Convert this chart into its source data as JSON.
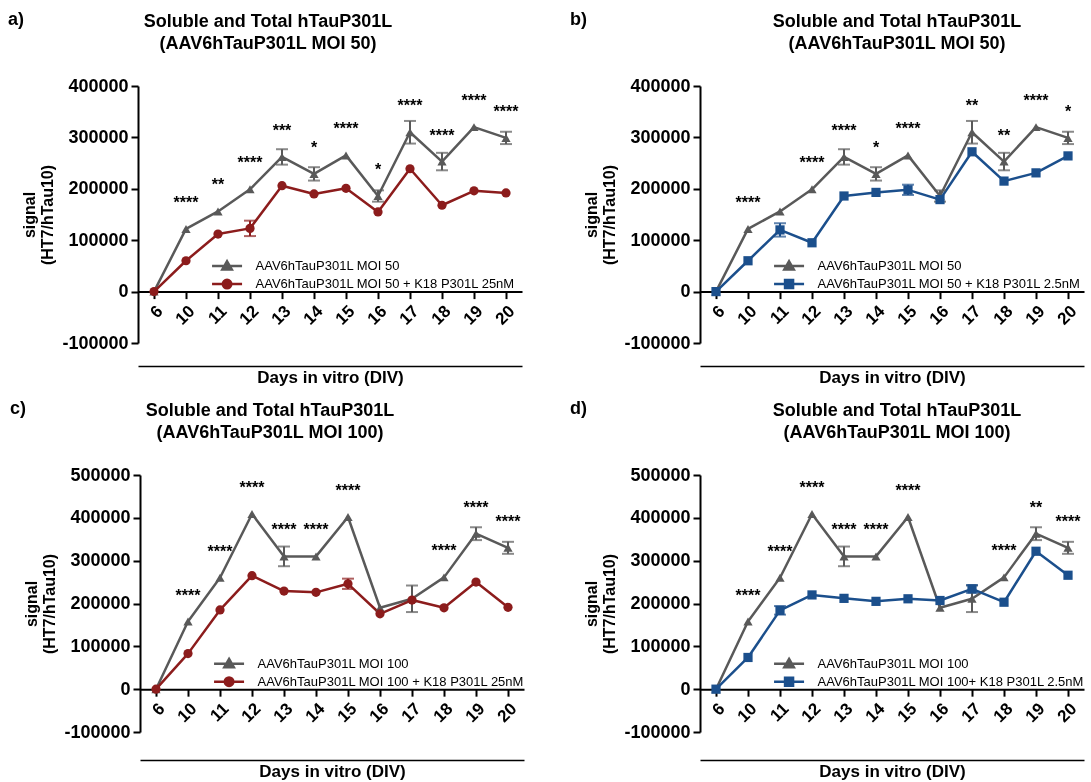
{
  "chart_data": [
    {
      "type": "line",
      "title": "Soluble and Total hTauP301L",
      "subtitle": "(AAV6hTauP301L MOI 50)",
      "xlabel": "Days in vitro (DIV)",
      "ylabel": "signal (HT7/hTau10)",
      "categories": [
        "6",
        "10",
        "11",
        "12",
        "13",
        "14",
        "15",
        "16",
        "17",
        "18",
        "19",
        "20"
      ],
      "ylim": [
        -100000,
        400000
      ],
      "yticks": [
        -100000,
        0,
        100000,
        200000,
        300000,
        400000
      ],
      "legend": "bottom right",
      "series": [
        {
          "name": "AAV6hTauP301L MOI 50",
          "color": "#595959",
          "marker": "triangle",
          "values": [
            0,
            122000,
            156000,
            199000,
            262000,
            229000,
            265000,
            186000,
            310000,
            253000,
            320000,
            299000
          ],
          "errors": [
            null,
            null,
            null,
            null,
            15000,
            13000,
            null,
            11000,
            22000,
            17000,
            null,
            12000
          ]
        },
        {
          "name": "AAV6hTauP301L MOI 50 + K18 P301L 25nM",
          "color": "#8c1c1c",
          "marker": "circle",
          "values": [
            0,
            60000,
            112000,
            123000,
            206000,
            190000,
            201000,
            155000,
            239000,
            168000,
            196000,
            192000
          ],
          "errors": [
            null,
            null,
            null,
            15000,
            null,
            null,
            null,
            null,
            null,
            null,
            null,
            null
          ]
        }
      ],
      "annotations": [
        "a)",
        {
          "text": "****",
          "x": "10",
          "y": 122000
        },
        {
          "text": "**",
          "x": "11",
          "y": 156000
        },
        {
          "text": "****",
          "x": "12",
          "y": 199000
        },
        {
          "text": "***",
          "x": "13",
          "y": 262000
        },
        {
          "text": "*",
          "x": "14",
          "y": 229000
        },
        {
          "text": "****",
          "x": "15",
          "y": 265000
        },
        {
          "text": "*",
          "x": "16",
          "y": 186000
        },
        {
          "text": "****",
          "x": "17",
          "y": 310000
        },
        {
          "text": "****",
          "x": "18",
          "y": 253000
        },
        {
          "text": "****",
          "x": "19",
          "y": 320000
        },
        {
          "text": "****",
          "x": "20",
          "y": 299000
        }
      ]
    },
    {
      "type": "line",
      "title": "Soluble and Total hTauP301L",
      "subtitle": "(AAV6hTauP301L MOI 50)",
      "xlabel": "Days in vitro (DIV)",
      "ylabel": "signal (HT7/hTau10)",
      "categories": [
        "6",
        "10",
        "11",
        "12",
        "13",
        "14",
        "15",
        "16",
        "17",
        "18",
        "19",
        "20"
      ],
      "ylim": [
        -100000,
        400000
      ],
      "yticks": [
        -100000,
        0,
        100000,
        200000,
        300000,
        400000
      ],
      "legend": "bottom right",
      "series": [
        {
          "name": "AAV6hTauP301L MOI 50",
          "color": "#595959",
          "marker": "triangle",
          "values": [
            0,
            122000,
            156000,
            199000,
            262000,
            229000,
            265000,
            186000,
            310000,
            253000,
            320000,
            299000
          ],
          "errors": [
            null,
            null,
            null,
            null,
            15000,
            13000,
            null,
            11000,
            22000,
            17000,
            null,
            12000
          ]
        },
        {
          "name": "AAV6hTauP301L MOI 50 + K18 P301L 2.5nM",
          "color": "#1b4f8c",
          "marker": "square",
          "values": [
            0,
            60000,
            120000,
            95000,
            186000,
            193000,
            198000,
            179000,
            272000,
            215000,
            231000,
            264000
          ],
          "errors": [
            null,
            null,
            13000,
            null,
            null,
            null,
            10000,
            null,
            null,
            null,
            null,
            null
          ]
        }
      ],
      "annotations": [
        "b)",
        {
          "text": "****",
          "x": "10",
          "y": 122000
        },
        {
          "text": "****",
          "x": "12",
          "y": 199000
        },
        {
          "text": "****",
          "x": "13",
          "y": 262000
        },
        {
          "text": "*",
          "x": "14",
          "y": 229000
        },
        {
          "text": "****",
          "x": "15",
          "y": 265000
        },
        {
          "text": "**",
          "x": "17",
          "y": 310000
        },
        {
          "text": "**",
          "x": "18",
          "y": 253000
        },
        {
          "text": "****",
          "x": "19",
          "y": 320000
        },
        {
          "text": "*",
          "x": "20",
          "y": 299000
        }
      ]
    },
    {
      "type": "line",
      "title": "Soluble and Total hTauP301L",
      "subtitle": "(AAV6hTauP301L MOI 100)",
      "xlabel": "Days in vitro (DIV)",
      "ylabel": "signal (HT7/hTau10)",
      "categories": [
        "6",
        "10",
        "11",
        "12",
        "13",
        "14",
        "15",
        "16",
        "17",
        "18",
        "19",
        "20"
      ],
      "ylim": [
        -100000,
        500000
      ],
      "yticks": [
        -100000,
        0,
        100000,
        200000,
        300000,
        400000,
        500000
      ],
      "legend": "bottom right",
      "series": [
        {
          "name": "AAV6hTauP301L MOI 100",
          "color": "#595959",
          "marker": "triangle",
          "values": [
            0,
            158000,
            260000,
            409000,
            310000,
            310000,
            402000,
            190000,
            211000,
            261000,
            363000,
            330000
          ],
          "errors": [
            null,
            null,
            null,
            null,
            23000,
            null,
            null,
            null,
            31000,
            null,
            15000,
            14000
          ]
        },
        {
          "name": "AAV6hTauP301L MOI 100 + K18 P301L 25nM",
          "color": "#8c1c1c",
          "marker": "circle",
          "values": [
            0,
            83000,
            185000,
            265000,
            229000,
            226000,
            246000,
            176000,
            208000,
            190000,
            250000,
            191000
          ],
          "errors": [
            null,
            null,
            null,
            null,
            null,
            null,
            12000,
            null,
            null,
            null,
            null,
            null
          ]
        }
      ],
      "annotations": [
        "c)",
        {
          "text": "****",
          "x": "10",
          "y": 158000
        },
        {
          "text": "****",
          "x": "11",
          "y": 260000
        },
        {
          "text": "****",
          "x": "12",
          "y": 409000
        },
        {
          "text": "****",
          "x": "13",
          "y": 310000
        },
        {
          "text": "****",
          "x": "14",
          "y": 310000
        },
        {
          "text": "****",
          "x": "15",
          "y": 402000
        },
        {
          "text": "****",
          "x": "18",
          "y": 261000
        },
        {
          "text": "****",
          "x": "19",
          "y": 363000
        },
        {
          "text": "****",
          "x": "20",
          "y": 330000
        }
      ]
    },
    {
      "type": "line",
      "title": "Soluble and Total hTauP301L",
      "subtitle": "(AAV6hTauP301L MOI 100)",
      "xlabel": "Days in vitro (DIV)",
      "ylabel": "signal (HT7/hTau10)",
      "categories": [
        "6",
        "10",
        "11",
        "12",
        "13",
        "14",
        "15",
        "16",
        "17",
        "18",
        "19",
        "20"
      ],
      "ylim": [
        -100000,
        500000
      ],
      "yticks": [
        -100000,
        0,
        100000,
        200000,
        300000,
        400000,
        500000
      ],
      "legend": "bottom right",
      "series": [
        {
          "name": "AAV6hTauP301L MOI 100",
          "color": "#595959",
          "marker": "triangle",
          "values": [
            0,
            158000,
            260000,
            409000,
            310000,
            310000,
            402000,
            190000,
            211000,
            261000,
            363000,
            330000
          ],
          "errors": [
            null,
            null,
            null,
            null,
            23000,
            null,
            null,
            null,
            31000,
            null,
            15000,
            14000
          ]
        },
        {
          "name": "AAV6hTauP301L MOI 100+ K18 P301L 2.5nM",
          "color": "#1b4f8c",
          "marker": "square",
          "values": [
            0,
            74000,
            184000,
            220000,
            212000,
            205000,
            211000,
            207000,
            234000,
            203000,
            322000,
            266000
          ],
          "errors": [
            null,
            null,
            10000,
            null,
            null,
            null,
            null,
            null,
            9000,
            null,
            null,
            null
          ]
        }
      ],
      "annotations": [
        "d)",
        {
          "text": "****",
          "x": "10",
          "y": 158000
        },
        {
          "text": "****",
          "x": "11",
          "y": 260000
        },
        {
          "text": "****",
          "x": "12",
          "y": 409000
        },
        {
          "text": "****",
          "x": "13",
          "y": 310000
        },
        {
          "text": "****",
          "x": "14",
          "y": 310000
        },
        {
          "text": "****",
          "x": "15",
          "y": 402000
        },
        {
          "text": "****",
          "x": "18",
          "y": 261000
        },
        {
          "text": "**",
          "x": "19",
          "y": 363000
        },
        {
          "text": "****",
          "x": "20",
          "y": 330000
        }
      ]
    }
  ]
}
